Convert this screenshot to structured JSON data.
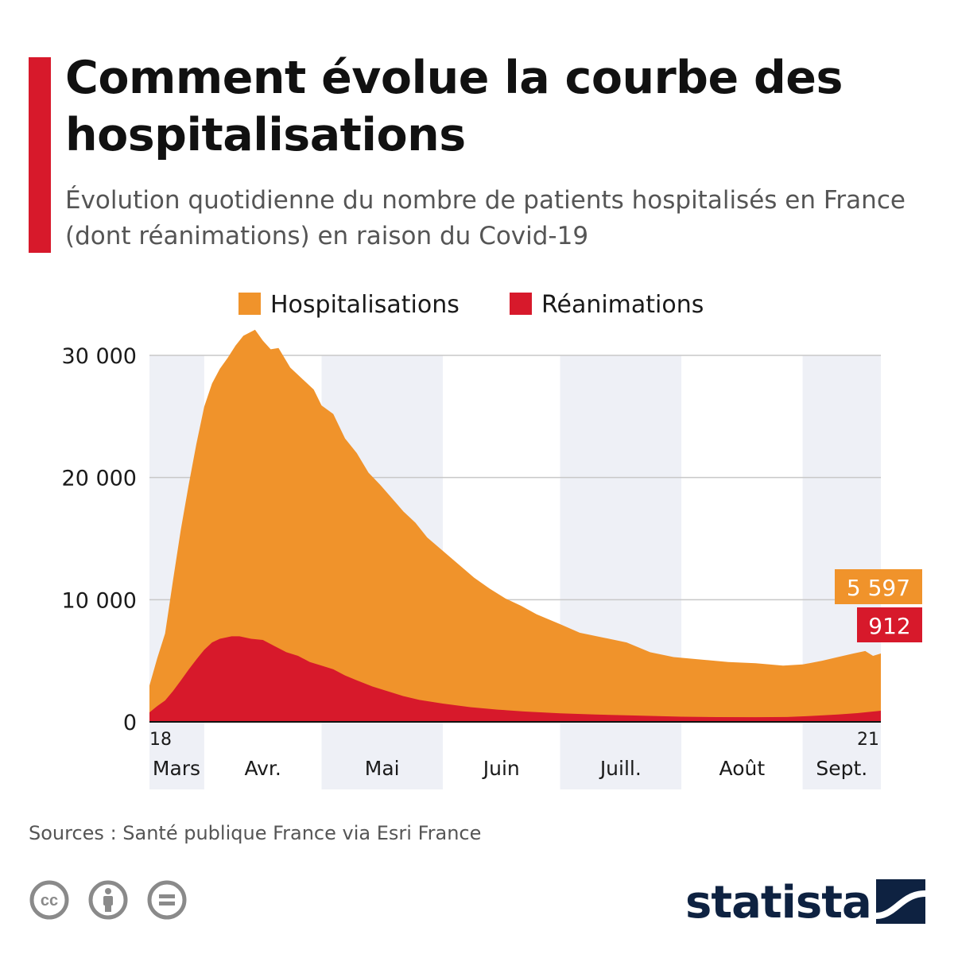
{
  "header": {
    "title": "Comment évolue la courbe des hospitalisations",
    "subtitle": "Évolution quotidienne du nombre de patients hospitalisés en France (dont réanimations) en raison du Covid-19"
  },
  "footer": {
    "source": "Sources : Santé publique France via Esri France",
    "brand": "statista",
    "license_icons": [
      "cc-icon",
      "attribution-icon",
      "no-derivatives-icon"
    ]
  },
  "colors": {
    "accent": "#d7192b",
    "hospitalisations": "#f0932b",
    "reanimations": "#d7192b",
    "band": "#eef0f6",
    "grid": "#c8c8c8",
    "brand": "#0e2241"
  },
  "chart_data": {
    "type": "area",
    "title": "Comment évolue la courbe des hospitalisations",
    "subtitle": "Évolution quotidienne du nombre de patients hospitalisés en France (dont réanimations) en raison du Covid-19",
    "x_start": "2020-03-18",
    "x_end": "2020-09-21",
    "ylim": [
      0,
      30000
    ],
    "yticks": [
      0,
      10000,
      20000,
      30000
    ],
    "ytick_labels": [
      "0",
      "10 000",
      "20 000",
      "30 000"
    ],
    "legend_position": "top",
    "grid": "horizontal",
    "shaded_months": [
      "Mars",
      "Mai",
      "Juill.",
      "Sept."
    ],
    "x_axis": {
      "start_day_label": "18",
      "end_day_label": "21",
      "months": [
        {
          "label": "Mars",
          "date": "2020-03-18"
        },
        {
          "label": "Avr.",
          "date": "2020-04-01"
        },
        {
          "label": "Mai",
          "date": "2020-05-01"
        },
        {
          "label": "Juin",
          "date": "2020-06-01"
        },
        {
          "label": "Juill.",
          "date": "2020-07-01"
        },
        {
          "label": "Août",
          "date": "2020-08-01"
        },
        {
          "label": "Sept.",
          "date": "2020-09-01"
        }
      ]
    },
    "series": [
      {
        "name": "Hospitalisations",
        "color": "#f0932b",
        "last_value_label": "5 597",
        "points": [
          [
            "2020-03-18",
            2972
          ],
          [
            "2020-03-20",
            5226
          ],
          [
            "2020-03-22",
            7240
          ],
          [
            "2020-03-24",
            11539
          ],
          [
            "2020-03-26",
            15701
          ],
          [
            "2020-03-28",
            19354
          ],
          [
            "2020-03-30",
            22757
          ],
          [
            "2020-04-01",
            25800
          ],
          [
            "2020-04-03",
            27700
          ],
          [
            "2020-04-05",
            28900
          ],
          [
            "2020-04-07",
            29800
          ],
          [
            "2020-04-09",
            30800
          ],
          [
            "2020-04-11",
            31600
          ],
          [
            "2020-04-14",
            32100
          ],
          [
            "2020-04-16",
            31200
          ],
          [
            "2020-04-18",
            30500
          ],
          [
            "2020-04-20",
            30600
          ],
          [
            "2020-04-23",
            29000
          ],
          [
            "2020-04-26",
            28100
          ],
          [
            "2020-04-29",
            27200
          ],
          [
            "2020-05-01",
            25900
          ],
          [
            "2020-05-04",
            25200
          ],
          [
            "2020-05-07",
            23200
          ],
          [
            "2020-05-10",
            22000
          ],
          [
            "2020-05-13",
            20400
          ],
          [
            "2020-05-16",
            19400
          ],
          [
            "2020-05-19",
            18300
          ],
          [
            "2020-05-22",
            17200
          ],
          [
            "2020-05-25",
            16300
          ],
          [
            "2020-05-28",
            15100
          ],
          [
            "2020-06-01",
            14000
          ],
          [
            "2020-06-05",
            12900
          ],
          [
            "2020-06-09",
            11800
          ],
          [
            "2020-06-13",
            10900
          ],
          [
            "2020-06-17",
            10100
          ],
          [
            "2020-06-21",
            9500
          ],
          [
            "2020-06-25",
            8800
          ],
          [
            "2020-07-01",
            8000
          ],
          [
            "2020-07-06",
            7300
          ],
          [
            "2020-07-12",
            6900
          ],
          [
            "2020-07-18",
            6500
          ],
          [
            "2020-07-24",
            5700
          ],
          [
            "2020-07-30",
            5300
          ],
          [
            "2020-08-06",
            5100
          ],
          [
            "2020-08-13",
            4900
          ],
          [
            "2020-08-20",
            4800
          ],
          [
            "2020-08-27",
            4600
          ],
          [
            "2020-09-01",
            4700
          ],
          [
            "2020-09-06",
            5000
          ],
          [
            "2020-09-10",
            5300
          ],
          [
            "2020-09-14",
            5600
          ],
          [
            "2020-09-17",
            5800
          ],
          [
            "2020-09-19",
            5400
          ],
          [
            "2020-09-21",
            5597
          ]
        ]
      },
      {
        "name": "Réanimations",
        "color": "#d7192b",
        "last_value_label": "912",
        "points": [
          [
            "2020-03-18",
            771
          ],
          [
            "2020-03-20",
            1297
          ],
          [
            "2020-03-22",
            1746
          ],
          [
            "2020-03-24",
            2516
          ],
          [
            "2020-03-26",
            3375
          ],
          [
            "2020-03-28",
            4273
          ],
          [
            "2020-03-30",
            5107
          ],
          [
            "2020-04-01",
            5900
          ],
          [
            "2020-04-03",
            6500
          ],
          [
            "2020-04-05",
            6800
          ],
          [
            "2020-04-08",
            7000
          ],
          [
            "2020-04-10",
            7000
          ],
          [
            "2020-04-13",
            6800
          ],
          [
            "2020-04-16",
            6700
          ],
          [
            "2020-04-19",
            6200
          ],
          [
            "2020-04-22",
            5700
          ],
          [
            "2020-04-25",
            5400
          ],
          [
            "2020-04-28",
            4900
          ],
          [
            "2020-05-01",
            4600
          ],
          [
            "2020-05-04",
            4300
          ],
          [
            "2020-05-07",
            3800
          ],
          [
            "2020-05-10",
            3400
          ],
          [
            "2020-05-14",
            2900
          ],
          [
            "2020-05-18",
            2500
          ],
          [
            "2020-05-22",
            2100
          ],
          [
            "2020-05-26",
            1800
          ],
          [
            "2020-06-01",
            1500
          ],
          [
            "2020-06-08",
            1200
          ],
          [
            "2020-06-15",
            1000
          ],
          [
            "2020-06-22",
            850
          ],
          [
            "2020-07-01",
            700
          ],
          [
            "2020-07-10",
            600
          ],
          [
            "2020-07-20",
            520
          ],
          [
            "2020-08-01",
            420
          ],
          [
            "2020-08-10",
            390
          ],
          [
            "2020-08-20",
            380
          ],
          [
            "2020-08-28",
            400
          ],
          [
            "2020-09-03",
            480
          ],
          [
            "2020-09-10",
            600
          ],
          [
            "2020-09-15",
            720
          ],
          [
            "2020-09-21",
            912
          ]
        ]
      }
    ]
  }
}
